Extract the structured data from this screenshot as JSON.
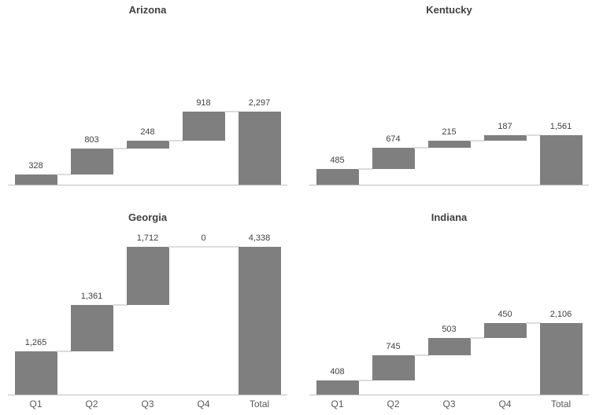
{
  "style": {
    "background": "#ffffff",
    "bar_color": "#7f7f7f",
    "connector_color": "#dddcdc",
    "axis_line_color": "#bfbfbf",
    "title_color": "#404040",
    "data_label_color": "#404040",
    "axis_label_color": "#595959"
  },
  "layout": {
    "rows": 2,
    "cols": 2,
    "order": [
      "Arizona",
      "Kentucky",
      "Georgia",
      "Indiana"
    ],
    "x_axis_labels_only_on_bottom_row": true,
    "grid": "off",
    "legend": "none"
  },
  "chart_data": [
    {
      "type": "bar",
      "subtype": "waterfall",
      "title": "Arizona",
      "categories": [
        "Q1",
        "Q2",
        "Q3",
        "Q4",
        "Total"
      ],
      "values": [
        328,
        803,
        248,
        918
      ],
      "cumulative": [
        328,
        1131,
        1379,
        2297
      ],
      "total": 2297,
      "data_labels": [
        "328",
        "803",
        "248",
        "918",
        "2,297"
      ],
      "x_axis_labels_visible": false,
      "ylim": [
        0,
        4800
      ]
    },
    {
      "type": "bar",
      "subtype": "waterfall",
      "title": "Kentucky",
      "categories": [
        "Q1",
        "Q2",
        "Q3",
        "Q4",
        "Total"
      ],
      "values": [
        485,
        674,
        215,
        187
      ],
      "cumulative": [
        485,
        1159,
        1374,
        1561
      ],
      "total": 1561,
      "data_labels": [
        "485",
        "674",
        "215",
        "187",
        "1,561"
      ],
      "x_axis_labels_visible": false,
      "ylim": [
        0,
        4800
      ]
    },
    {
      "type": "bar",
      "subtype": "waterfall",
      "title": "Georgia",
      "categories": [
        "Q1",
        "Q2",
        "Q3",
        "Q4",
        "Total"
      ],
      "values": [
        1265,
        1361,
        1712,
        0
      ],
      "cumulative": [
        1265,
        2626,
        4338,
        4338
      ],
      "total": 4338,
      "data_labels": [
        "1,265",
        "1,361",
        "1,712",
        "0",
        "4,338"
      ],
      "x_axis_labels_visible": true,
      "ylim": [
        0,
        4800
      ]
    },
    {
      "type": "bar",
      "subtype": "waterfall",
      "title": "Indiana",
      "categories": [
        "Q1",
        "Q2",
        "Q3",
        "Q4",
        "Total"
      ],
      "values": [
        408,
        745,
        503,
        450
      ],
      "cumulative": [
        408,
        1153,
        1656,
        2106
      ],
      "total": 2106,
      "data_labels": [
        "408",
        "745",
        "503",
        "450",
        "2,106"
      ],
      "x_axis_labels_visible": true,
      "ylim": [
        0,
        4800
      ]
    }
  ]
}
